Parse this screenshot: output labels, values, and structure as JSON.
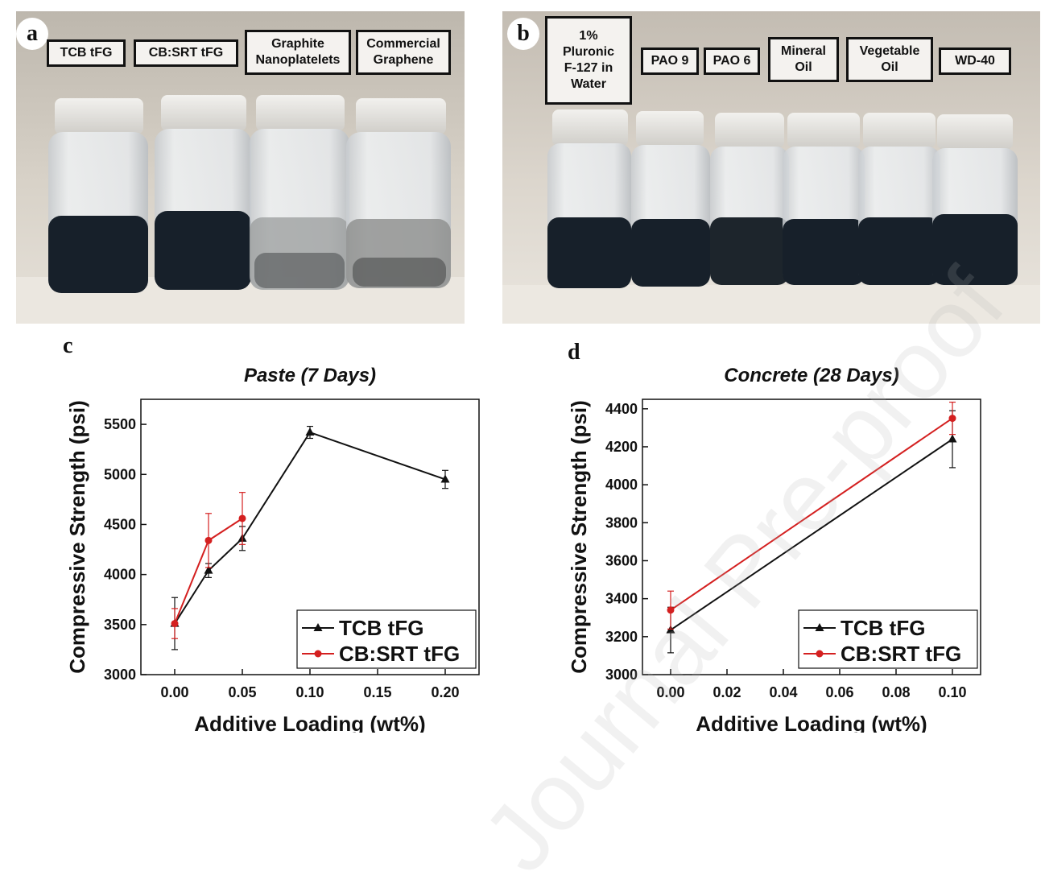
{
  "panels": {
    "a": {
      "letter": "a",
      "labels": [
        "TCB tFG",
        "CB:SRT tFG",
        "Graphite\nNanoplatelets",
        "Commercial\nGraphene"
      ]
    },
    "b": {
      "letter": "b",
      "labels": [
        "1%\nPluronic\nF-127 in\nWater",
        "PAO 9",
        "PAO 6",
        "Mineral\nOil",
        "Vegetable\nOil",
        "WD-40"
      ]
    },
    "c": {
      "letter": "c"
    },
    "d": {
      "letter": "d"
    }
  },
  "watermark": "Journal Pre-proof",
  "colors": {
    "tcb": "#111111",
    "cbsrt": "#d42020"
  },
  "chart_data": [
    {
      "id": "c",
      "type": "line",
      "title": "Paste (7 Days)",
      "xlabel": "Additive Loading (wt%)",
      "ylabel": "Compressive Strength (psi)",
      "xlim": [
        -0.025,
        0.225
      ],
      "ylim": [
        3000,
        5750
      ],
      "xticks": [
        0.0,
        0.05,
        0.1,
        0.15,
        0.2
      ],
      "xtick_labels": [
        "0.00",
        "0.05",
        "0.10",
        "0.15",
        "0.20"
      ],
      "yticks": [
        3000,
        3500,
        4000,
        4500,
        5000,
        5500
      ],
      "ytick_labels": [
        "3000",
        "3500",
        "4000",
        "4500",
        "5000",
        "5500"
      ],
      "legend_position": "bottom-right",
      "series": [
        {
          "name": "TCB tFG",
          "color": "#111111",
          "marker": "triangle",
          "x": [
            0.0,
            0.025,
            0.05,
            0.1,
            0.2
          ],
          "y": [
            3510,
            4040,
            4360,
            5420,
            4950
          ],
          "err": [
            260,
            70,
            120,
            60,
            90
          ]
        },
        {
          "name": "CB:SRT tFG",
          "color": "#d42020",
          "marker": "circle",
          "x": [
            0.0,
            0.025,
            0.05
          ],
          "y": [
            3510,
            4340,
            4560
          ],
          "err": [
            150,
            270,
            260
          ]
        }
      ]
    },
    {
      "id": "d",
      "type": "line",
      "title": "Concrete (28 Days)",
      "xlabel": "Additive Loading (wt%)",
      "ylabel": "Compressive Strength (psi)",
      "xlim": [
        -0.01,
        0.11
      ],
      "ylim": [
        3000,
        4450
      ],
      "xticks": [
        0.0,
        0.02,
        0.04,
        0.06,
        0.08,
        0.1
      ],
      "xtick_labels": [
        "0.00",
        "0.02",
        "0.04",
        "0.06",
        "0.08",
        "0.10"
      ],
      "yticks": [
        3000,
        3200,
        3400,
        3600,
        3800,
        4000,
        4200,
        4400
      ],
      "ytick_labels": [
        "3000",
        "3200",
        "3400",
        "3600",
        "3800",
        "4000",
        "4200",
        "4400"
      ],
      "legend_position": "bottom-right",
      "series": [
        {
          "name": "TCB tFG",
          "color": "#111111",
          "marker": "triangle",
          "x": [
            0.0,
            0.1
          ],
          "y": [
            3235,
            4240
          ],
          "err": [
            120,
            150
          ]
        },
        {
          "name": "CB:SRT tFG",
          "color": "#d42020",
          "marker": "circle",
          "x": [
            0.0,
            0.1
          ],
          "y": [
            3340,
            4350
          ],
          "err": [
            100,
            85
          ]
        }
      ]
    }
  ]
}
